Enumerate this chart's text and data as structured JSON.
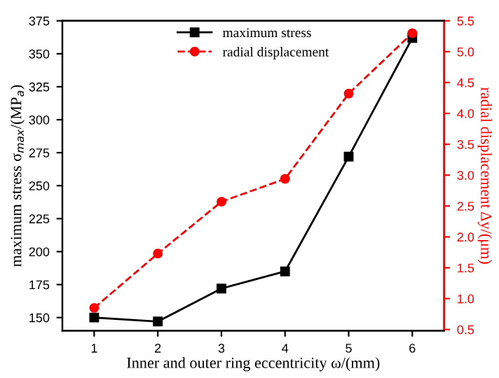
{
  "chart_data": {
    "type": "line",
    "x": [
      1,
      2,
      3,
      4,
      5,
      6
    ],
    "xlabel": "Inner and outer ring eccentricity ω/(mm)",
    "ylabel": "maximum stress σ$_{max}$/(MP$_{a}$)",
    "y2label": "radial displacement Δy/(μm)",
    "series": [
      {
        "name": "maximum stress",
        "color": "#000000",
        "marker": "square",
        "line_style": "solid",
        "values": [
          150,
          147,
          172,
          185,
          272,
          362
        ]
      },
      {
        "name": "radial displacement",
        "color": "#ff0000",
        "marker": "circle",
        "line_style": "dashed",
        "axis": "y2",
        "values": [
          0.85,
          1.73,
          2.57,
          2.94,
          4.32,
          5.3
        ]
      }
    ],
    "xlim": [
      0.5,
      6.5
    ],
    "xticks": [
      1,
      2,
      3,
      4,
      5,
      6
    ],
    "ylim": [
      140,
      375
    ],
    "yticks": [
      150,
      175,
      200,
      225,
      250,
      275,
      300,
      325,
      350,
      375
    ],
    "y2lim": [
      0.48,
      5.5
    ],
    "y2ticks": [
      0.5,
      {
        "value": 1,
        "label": "1.0"
      },
      1.5,
      {
        "value": 2,
        "label": "2.0"
      },
      2.5,
      {
        "value": 3,
        "label": "3.0"
      },
      3.5,
      {
        "value": 4,
        "label": "4.0"
      },
      4.5,
      {
        "value": 5,
        "label": "5.0"
      },
      5.5
    ],
    "grid": false,
    "legend": "top"
  }
}
